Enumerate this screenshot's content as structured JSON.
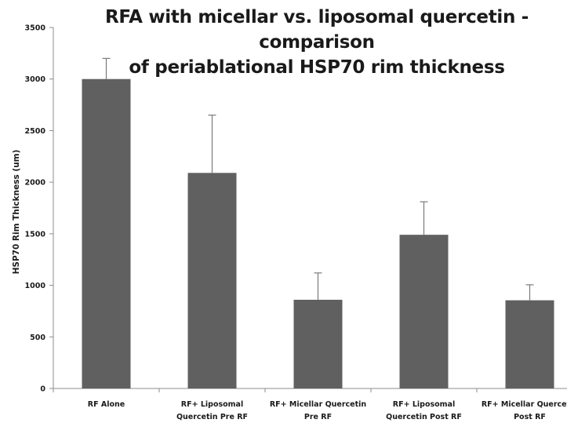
{
  "chart_data": {
    "type": "bar",
    "title_lines": [
      "RFA with micellar vs. liposomal quercetin - comparison",
      "of periablational HSP70 rim thickness"
    ],
    "ylabel": "HSP70 Rim Thickness (um)",
    "xlabel": "",
    "ylim": [
      0,
      3500
    ],
    "yticks": [
      0,
      500,
      1000,
      1500,
      2000,
      2500,
      3000,
      3500
    ],
    "categories": [
      [
        "RF Alone"
      ],
      [
        "RF+ Liposomal",
        "Quercetin Pre RF"
      ],
      [
        "RF+ Micellar Quercetin",
        "Pre RF"
      ],
      [
        "RF+ Liposomal",
        "Quercetin Post RF"
      ],
      [
        "RF+ Micellar Quercetin",
        "Post RF"
      ]
    ],
    "values": [
      3000,
      2090,
      860,
      1490,
      855
    ],
    "error_upper": [
      200,
      560,
      260,
      320,
      150
    ],
    "bar_color": "#606060",
    "grid": false,
    "legend": "none"
  }
}
